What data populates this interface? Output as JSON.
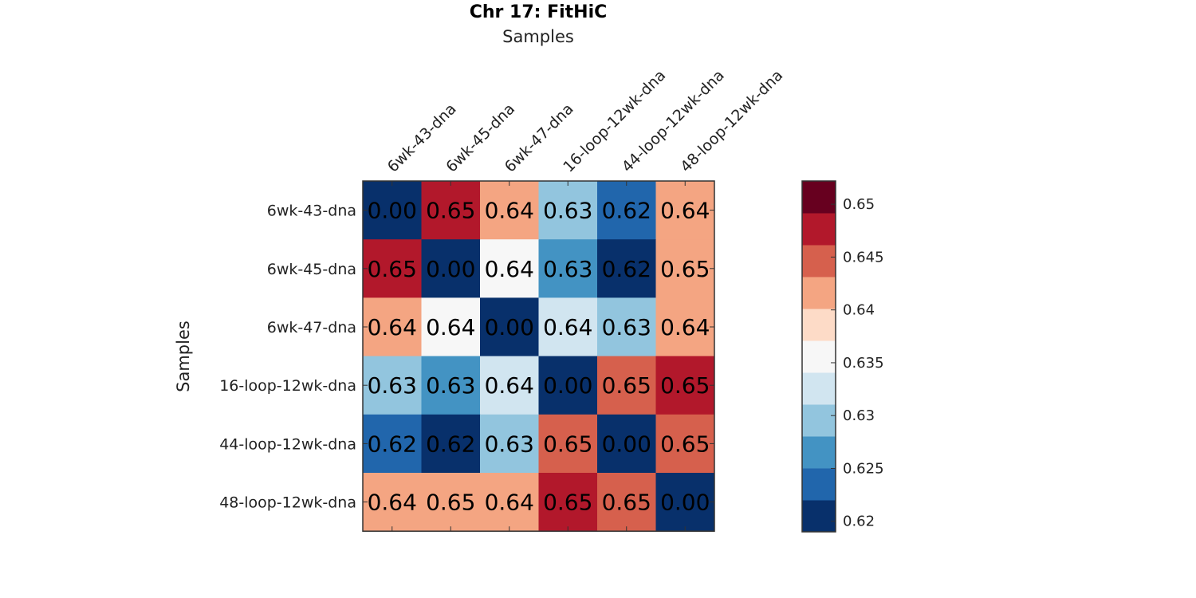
{
  "chart_data": {
    "type": "heatmap",
    "title": "Chr 17: FitHiC",
    "xlabel": "Samples",
    "ylabel": "Samples",
    "x_labels": [
      "6wk-43-dna",
      "6wk-45-dna",
      "6wk-47-dna",
      "16-loop-12wk-dna",
      "44-loop-12wk-dna",
      "48-loop-12wk-dna"
    ],
    "y_labels": [
      "6wk-43-dna",
      "6wk-45-dna",
      "6wk-47-dna",
      "16-loop-12wk-dna",
      "44-loop-12wk-dna",
      "48-loop-12wk-dna"
    ],
    "values": [
      [
        0.0,
        0.65,
        0.64,
        0.63,
        0.62,
        0.64
      ],
      [
        0.65,
        0.0,
        0.64,
        0.63,
        0.62,
        0.65
      ],
      [
        0.64,
        0.64,
        0.0,
        0.64,
        0.63,
        0.64
      ],
      [
        0.63,
        0.63,
        0.64,
        0.0,
        0.65,
        0.65
      ],
      [
        0.62,
        0.62,
        0.63,
        0.65,
        0.0,
        0.65
      ],
      [
        0.64,
        0.65,
        0.64,
        0.65,
        0.65,
        0.0
      ]
    ],
    "cell_color_levels": [
      [
        0,
        9,
        7,
        3,
        1,
        7
      ],
      [
        9,
        0,
        5,
        2,
        0,
        7
      ],
      [
        7,
        5,
        0,
        4,
        3,
        7
      ],
      [
        3,
        2,
        4,
        0,
        8,
        9
      ],
      [
        1,
        0,
        3,
        8,
        0,
        8
      ],
      [
        7,
        7,
        7,
        9,
        8,
        0
      ]
    ],
    "colorbar": {
      "range": [
        0.619,
        0.6522
      ],
      "ticks": [
        0.62,
        0.625,
        0.63,
        0.635,
        0.64,
        0.645,
        0.65
      ],
      "tick_labels": [
        "0.62",
        "0.625",
        "0.63",
        "0.635",
        "0.64",
        "0.645",
        "0.65"
      ],
      "colors": [
        "#08306b",
        "#2166ac",
        "#4393c3",
        "#92c5de",
        "#d1e5f0",
        "#f7f7f7",
        "#fddbc7",
        "#f4a582",
        "#d6604d",
        "#b2182b",
        "#67001f"
      ]
    },
    "colormap": "RdBu (diverging, 10 levels)",
    "grid": false
  }
}
